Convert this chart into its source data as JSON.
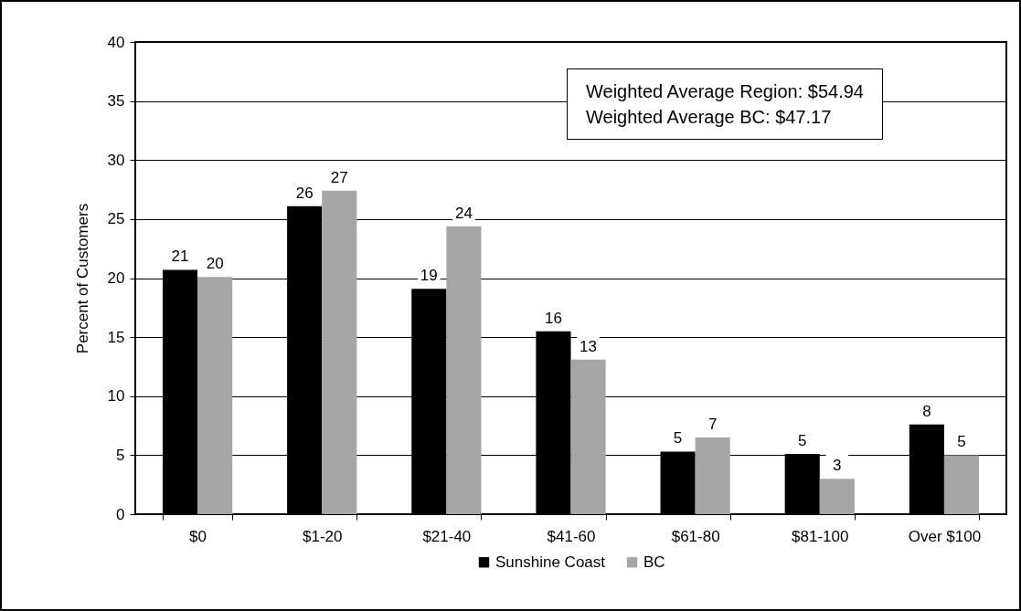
{
  "chart_data": {
    "type": "bar",
    "ylabel": "Percent of Customers",
    "categories": [
      "$0",
      "$1-20",
      "$21-40",
      "$41-60",
      "$61-80",
      "$81-100",
      "Over $100"
    ],
    "series": [
      {
        "name": "Sunshine Coast",
        "color": "#000000",
        "values": [
          20.7,
          26.1,
          19.1,
          15.5,
          5.3,
          5.1,
          7.6
        ],
        "value_labels": [
          "21",
          "26",
          "19",
          "16",
          "5",
          "5",
          "8"
        ]
      },
      {
        "name": "BC",
        "color": "#a6a6a6",
        "values": [
          20.1,
          27.4,
          24.4,
          13.1,
          6.5,
          3.0,
          5.0
        ],
        "value_labels": [
          "20",
          "27",
          "24",
          "13",
          "7",
          "3",
          "5"
        ]
      }
    ],
    "ylim": [
      0,
      40
    ],
    "yticks": [
      0,
      5,
      10,
      15,
      20,
      25,
      30,
      35,
      40
    ],
    "grid": "y",
    "legend": "bottom",
    "annotations": [
      "Weighted Average Region: $54.94\nWeighted Average BC: $47.17"
    ]
  }
}
